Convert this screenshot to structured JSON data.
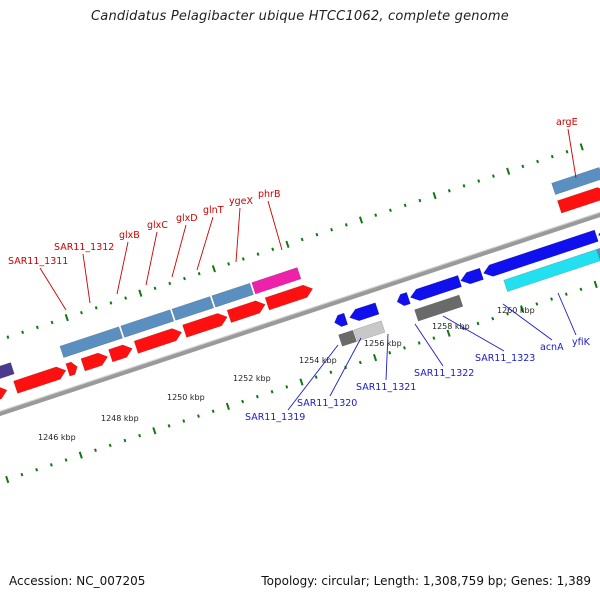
{
  "title": "Candidatus Pelagibacter ubique HTCC1062, complete genome",
  "footer": {
    "accession": "Accession: NC_007205",
    "summary": "Topology: circular; Length: 1,308,759 bp; Genes: 1,389"
  },
  "colors": {
    "forward_cds": "#ff1010",
    "reverse_cds": "#1010ee",
    "forward_feature": "#5a8fc0",
    "reverse_feature_gray": "#6a6a6a",
    "light_gray": "#c8c8c8",
    "cyan": "#22e0f0",
    "magenta": "#ee22aa",
    "purple": "#4a3a8c",
    "forward_label": "#cc0000",
    "reverse_label": "#1a1acc",
    "backbone": "#888888",
    "tick": "#117711"
  },
  "kbp_labels": [
    "1246 kbp",
    "1248 kbp",
    "1250 kbp",
    "1252 kbp",
    "1254 kbp",
    "1256 kbp",
    "1258 kbp",
    "1260 kbp"
  ],
  "forward_genes": [
    "SAR11_1311",
    "SAR11_1312",
    "glxB",
    "glxC",
    "glxD",
    "glnT",
    "ygeX",
    "phrB",
    "argE"
  ],
  "reverse_genes": [
    "SAR11_1319",
    "SAR11_1320",
    "SAR11_1321",
    "SAR11_1322",
    "SAR11_1323",
    "acnA",
    "yfiK"
  ]
}
